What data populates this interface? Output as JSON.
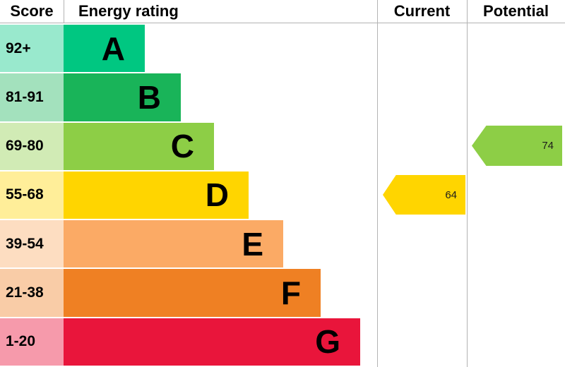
{
  "header": {
    "score": "Score",
    "energy_rating": "Energy rating",
    "current": "Current",
    "potential": "Potential"
  },
  "bands": [
    {
      "score": "92+",
      "letter": "A",
      "color": "#00c781",
      "score_bg": "#99e9cd"
    },
    {
      "score": "81-91",
      "letter": "B",
      "color": "#19b459",
      "score_bg": "#a3e1bd"
    },
    {
      "score": "69-80",
      "letter": "C",
      "color": "#8dce46",
      "score_bg": "#d1ebb5"
    },
    {
      "score": "55-68",
      "letter": "D",
      "color": "#ffd500",
      "score_bg": "#ffee99"
    },
    {
      "score": "39-54",
      "letter": "E",
      "color": "#fbaa65",
      "score_bg": "#fdddc1"
    },
    {
      "score": "21-38",
      "letter": "F",
      "color": "#ef8023",
      "score_bg": "#f9cca7"
    },
    {
      "score": "1-20",
      "letter": "G",
      "color": "#e9153b",
      "score_bg": "#f69aab"
    }
  ],
  "current": {
    "value": "64",
    "band": "D",
    "color": "#ffd500"
  },
  "potential": {
    "value": "74",
    "band": "C",
    "color": "#8dce46"
  },
  "chart_data": {
    "type": "bar",
    "title": "Energy rating",
    "categories": [
      "A",
      "B",
      "C",
      "D",
      "E",
      "F",
      "G"
    ],
    "score_ranges": [
      "92+",
      "81-91",
      "69-80",
      "55-68",
      "39-54",
      "21-38",
      "1-20"
    ],
    "band_colors": [
      "#00c781",
      "#19b459",
      "#8dce46",
      "#ffd500",
      "#fbaa65",
      "#ef8023",
      "#e9153b"
    ],
    "columns": [
      "Score",
      "Energy rating",
      "Current",
      "Potential"
    ],
    "current_rating": 64,
    "current_band": "D",
    "potential_rating": 74,
    "potential_band": "C",
    "legend_position": "none",
    "grid": false
  }
}
